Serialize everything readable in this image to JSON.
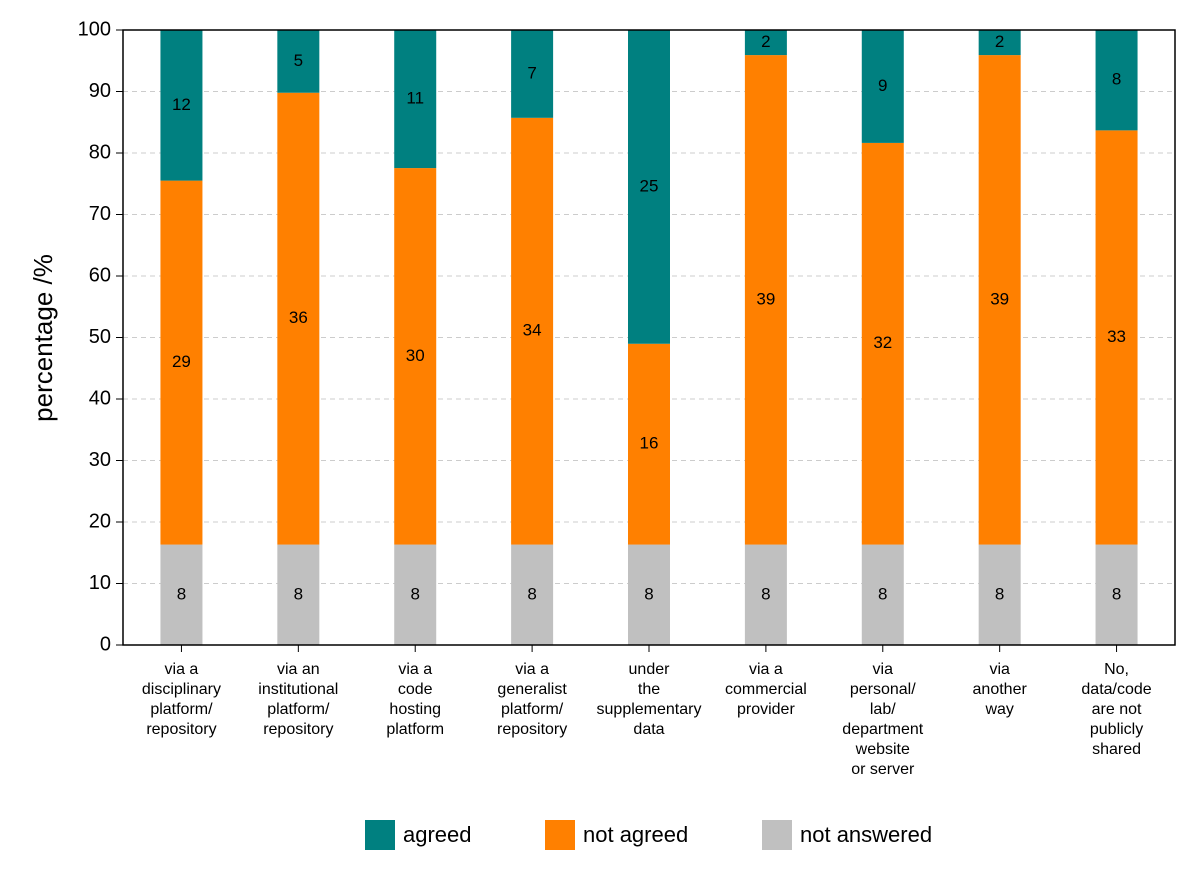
{
  "chart_data": {
    "type": "stacked_bar",
    "ylabel": "percentage  /%",
    "categories": [
      [
        "via a",
        "disciplinary",
        "platform/",
        "repository"
      ],
      [
        "via an",
        "institutional",
        "platform/",
        "repository"
      ],
      [
        "via a",
        "code",
        "hosting",
        "platform"
      ],
      [
        "via a",
        "generalist",
        "platform/",
        "repository"
      ],
      [
        "under",
        "the",
        "supplementary",
        "data"
      ],
      [
        "via a",
        "commercial",
        "provider"
      ],
      [
        "via",
        "personal/",
        "lab/",
        "department",
        "website",
        "or server"
      ],
      [
        "via",
        "another",
        "way"
      ],
      [
        "No,",
        "data/code",
        "are not",
        "publicly",
        "shared"
      ]
    ],
    "series": [
      {
        "name": "agreed",
        "color": "#008080",
        "values": [
          24.49,
          10.2,
          22.45,
          14.29,
          51.02,
          4.08,
          18.37,
          4.08,
          16.33
        ],
        "value_labels": [
          "12",
          "5",
          "11",
          "7",
          "25",
          "2",
          "9",
          "2",
          "8"
        ]
      },
      {
        "name": "not agreed",
        "color": "#ff8000",
        "values": [
          59.18,
          73.47,
          61.22,
          69.39,
          32.65,
          79.59,
          65.31,
          79.59,
          67.35
        ],
        "value_labels": [
          "29",
          "36",
          "30",
          "34",
          "16",
          "39",
          "32",
          "39",
          "33"
        ]
      },
      {
        "name": "not answered",
        "color": "#c0c0c0",
        "values": [
          16.33,
          16.33,
          16.33,
          16.33,
          16.33,
          16.33,
          16.33,
          16.33,
          16.33
        ],
        "value_labels": [
          "8",
          "8",
          "8",
          "8",
          "8",
          "8",
          "8",
          "8",
          "8"
        ]
      }
    ],
    "ylim": [
      0,
      100
    ],
    "yticks": [
      0,
      10,
      20,
      30,
      40,
      50,
      60,
      70,
      80,
      90,
      100
    ],
    "grid": true,
    "legend": "bottom"
  }
}
